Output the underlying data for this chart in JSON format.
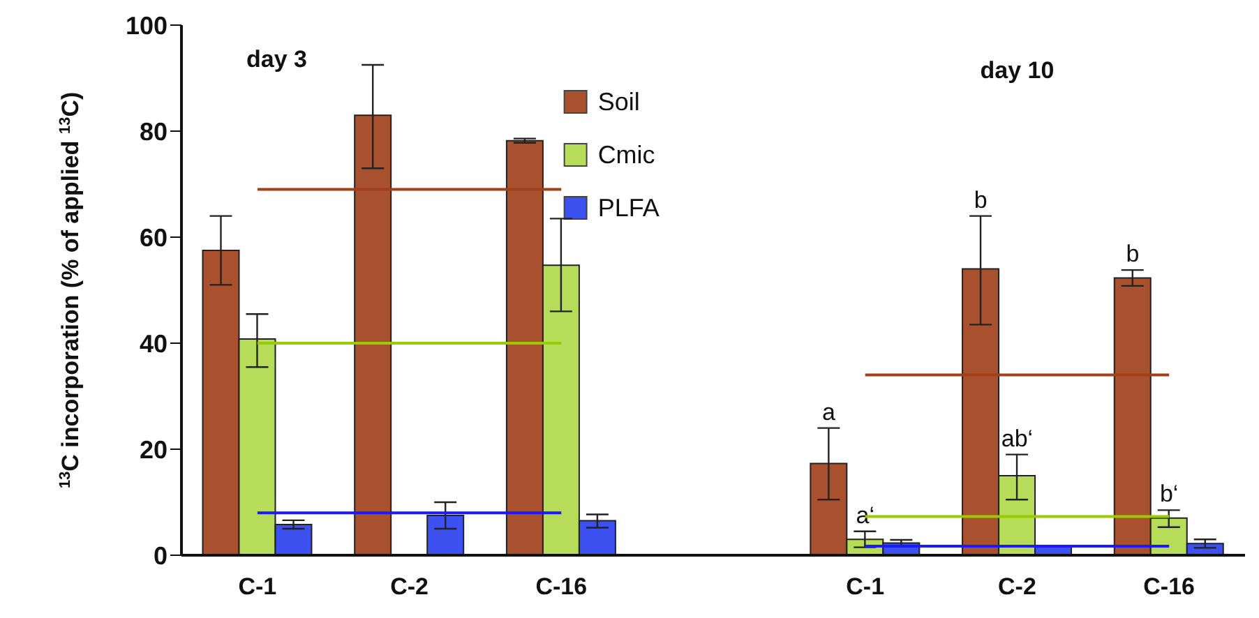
{
  "chart_data": {
    "type": "bar",
    "ylabel": "$^{13}$C incorporation (% of applied $^{13}$C)",
    "categories": [
      "C-1",
      "C-2",
      "C-16",
      null,
      "C-1",
      "C-2",
      "C-16"
    ],
    "series": [
      {
        "name": "Soil",
        "color": "#a9502e",
        "values": [
          57.5,
          83,
          78.2,
          null,
          17.3,
          54,
          52.3
        ],
        "errors": [
          [
            51,
            64
          ],
          [
            73,
            92.5
          ],
          [
            77.8,
            78.6
          ],
          null,
          [
            10.5,
            24
          ],
          [
            43.5,
            64
          ],
          [
            50.8,
            53.8
          ]
        ],
        "value_labels": [
          null,
          null,
          null,
          null,
          "a",
          "b",
          "b"
        ]
      },
      {
        "name": "Cmic",
        "color": "#b7dc5a",
        "values": [
          40.8,
          null,
          54.7,
          null,
          3,
          15,
          7
        ],
        "errors": [
          [
            35.5,
            45.5
          ],
          null,
          [
            46,
            63.5
          ],
          null,
          [
            1.5,
            4.5
          ],
          [
            10.5,
            19
          ],
          [
            5.3,
            8.5
          ]
        ],
        "value_labels": [
          null,
          null,
          null,
          null,
          "a‘",
          "ab‘",
          "b‘"
        ]
      },
      {
        "name": "PLFA",
        "color": "#3d50f0",
        "values": [
          5.8,
          7.5,
          6.5,
          null,
          2.3,
          1.8,
          2.2
        ],
        "errors": [
          [
            5,
            6.6
          ],
          [
            5,
            10
          ],
          [
            5.2,
            7.7
          ],
          null,
          [
            1.7,
            2.9
          ],
          null,
          [
            1.4,
            3
          ]
        ]
      },
      {
        "type": "line",
        "color": "#a0401a",
        "values": [
          69,
          69,
          69,
          null,
          34,
          34,
          34
        ]
      },
      {
        "type": "line",
        "color": "#99cc00",
        "values": [
          40,
          40,
          40,
          null,
          7.3,
          7.3,
          7.3
        ]
      },
      {
        "type": "line",
        "color": "#1a1aff",
        "values": [
          8,
          8,
          8,
          null,
          1.7,
          1.7,
          1.7
        ]
      }
    ],
    "ylim": [
      0,
      100
    ],
    "yticks": [
      0,
      20,
      40,
      60,
      80,
      100
    ],
    "legend": "top",
    "annotations": [
      "day 3",
      "day 10"
    ]
  }
}
